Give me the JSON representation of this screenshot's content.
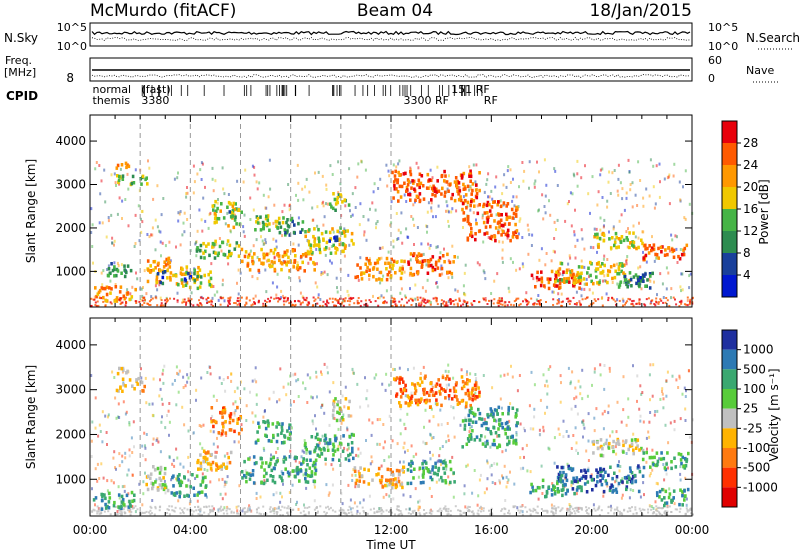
{
  "header": {
    "station": "McMurdo (fitACF)",
    "beam": "Beam 04",
    "date": "18/Jan/2015"
  },
  "aux_panels": {
    "nsky_label": "N.Sky",
    "nsky_ticks": [
      "10^5",
      "10^0"
    ],
    "nsearch_label": "N.Search",
    "nsearch_ticks": [
      "10^5",
      "10^0"
    ],
    "freq_label_1": "Freq.",
    "freq_label_2": "[MHz]",
    "freq_ticks": [
      "8"
    ],
    "nave_label": "Nave",
    "nave_ticks": [
      "60",
      "0"
    ],
    "cpid_label": "CPID",
    "cpid_entries": [
      {
        "text": "normal",
        "row": 0,
        "hour": 0.1
      },
      {
        "text": "themis",
        "row": 1,
        "hour": 0.1
      },
      {
        "text": "(fast)",
        "row": 0,
        "hour": 2.05
      },
      {
        "text": "3380",
        "row": 1,
        "hour": 2.05
      },
      {
        "text": "3300 RF",
        "row": 1,
        "hour": 12.5
      },
      {
        "text": "151 RF",
        "row": 0,
        "hour": 14.4
      },
      {
        "text": "RF",
        "row": 1,
        "hour": 15.7
      }
    ]
  },
  "colorbars": {
    "power": {
      "label": "Power [dB]",
      "ticks": [
        "28",
        "24",
        "20",
        "16",
        "12",
        "8",
        "4"
      ],
      "colors": [
        "#e8000b",
        "#ff5a00",
        "#ff9800",
        "#f0c800",
        "#46b446",
        "#2d8c50",
        "#19409b",
        "#0018d0"
      ]
    },
    "velocity": {
      "label": "Velocity [m s⁻¹]",
      "ticks": [
        "1000",
        "500",
        "100",
        "25",
        "-25",
        "-100",
        "-500",
        "-1000"
      ],
      "colors": [
        "#1f2f9f",
        "#2d7ab4",
        "#3aa870",
        "#58cc3a",
        "#c0c0c0",
        "#ffb300",
        "#ff7a10",
        "#ff3000",
        "#e00000"
      ]
    }
  },
  "chart_data": [
    {
      "type": "heatmap",
      "name": "power",
      "ylabel": "Slant Range [km]",
      "xlabel": "",
      "yticks": [
        1000,
        2000,
        3000,
        4000
      ],
      "ylim": [
        180,
        4600
      ],
      "xlim": [
        0,
        24
      ],
      "blobs": [
        {
          "h0": 0.1,
          "h1": 1.8,
          "r0": 300,
          "r1": 650,
          "level": 5
        },
        {
          "h0": 0.5,
          "h1": 1.6,
          "r0": 850,
          "r1": 1200,
          "level": 2
        },
        {
          "h0": 1.0,
          "h1": 2.3,
          "r0": 2950,
          "r1": 3200,
          "level": 3
        },
        {
          "h0": 1.0,
          "h1": 1.8,
          "r0": 3350,
          "r1": 3500,
          "level": 5
        },
        {
          "h0": 2.2,
          "h1": 3.2,
          "r0": 650,
          "r1": 1300,
          "level": 5
        },
        {
          "h0": 2.6,
          "h1": 3.0,
          "r0": 700,
          "r1": 1000,
          "level": 1
        },
        {
          "h0": 3.2,
          "h1": 4.8,
          "r0": 600,
          "r1": 1100,
          "level": 4
        },
        {
          "h0": 3.7,
          "h1": 4.5,
          "r0": 750,
          "r1": 950,
          "level": 1
        },
        {
          "h0": 4.2,
          "h1": 6.0,
          "r0": 1300,
          "r1": 1700,
          "level": 3
        },
        {
          "h0": 4.8,
          "h1": 6.0,
          "r0": 2000,
          "r1": 2600,
          "level": 4
        },
        {
          "h0": 5.4,
          "h1": 5.8,
          "r0": 2200,
          "r1": 2400,
          "level": 2
        },
        {
          "h0": 6.5,
          "h1": 8.0,
          "r0": 1900,
          "r1": 2300,
          "level": 3
        },
        {
          "h0": 7.5,
          "h1": 8.5,
          "r0": 1800,
          "r1": 2200,
          "level": 2
        },
        {
          "h0": 6.0,
          "h1": 9.0,
          "r0": 1000,
          "r1": 1500,
          "level": 5
        },
        {
          "h0": 8.5,
          "h1": 10.5,
          "r0": 1400,
          "r1": 2000,
          "level": 4
        },
        {
          "h0": 9.5,
          "h1": 10.3,
          "r0": 2400,
          "r1": 2800,
          "level": 3
        },
        {
          "h0": 9.5,
          "h1": 10.0,
          "r0": 1600,
          "r1": 1800,
          "level": 1
        },
        {
          "h0": 10.5,
          "h1": 12.5,
          "r0": 800,
          "r1": 1300,
          "level": 5
        },
        {
          "h0": 12.6,
          "h1": 14.5,
          "r0": 900,
          "r1": 1400,
          "level": 6
        },
        {
          "h0": 12.0,
          "h1": 15.5,
          "r0": 2600,
          "r1": 3300,
          "level": 6
        },
        {
          "h0": 14.8,
          "h1": 17.0,
          "r0": 1700,
          "r1": 2600,
          "level": 6
        },
        {
          "h0": 17.5,
          "h1": 19.5,
          "r0": 600,
          "r1": 1000,
          "level": 6
        },
        {
          "h0": 18.5,
          "h1": 21.5,
          "r0": 700,
          "r1": 1200,
          "level": 4
        },
        {
          "h0": 20.0,
          "h1": 22.0,
          "r0": 1500,
          "r1": 1900,
          "level": 4
        },
        {
          "h0": 21.0,
          "h1": 22.5,
          "r0": 600,
          "r1": 1000,
          "level": 2
        },
        {
          "h0": 21.5,
          "h1": 22.0,
          "r0": 650,
          "r1": 850,
          "level": 1
        },
        {
          "h0": 22.0,
          "h1": 23.8,
          "r0": 1200,
          "r1": 1600,
          "level": 6
        }
      ]
    },
    {
      "type": "heatmap",
      "name": "velocity",
      "ylabel": "Slant Range [km]",
      "xlabel": "Time UT",
      "xticks": [
        "00:00",
        "04:00",
        "08:00",
        "12:00",
        "16:00",
        "20:00",
        "00:00"
      ],
      "yticks": [
        1000,
        2000,
        3000,
        4000
      ],
      "ylim": [
        180,
        4600
      ],
      "xlim": [
        0,
        24
      ],
      "blobs": [
        {
          "h0": 0.1,
          "h1": 1.8,
          "r0": 300,
          "r1": 700,
          "level": 6
        },
        {
          "h0": 1.0,
          "h1": 2.2,
          "r0": 2950,
          "r1": 3250,
          "level": 3
        },
        {
          "h0": 1.0,
          "h1": 1.8,
          "r0": 3350,
          "r1": 3500,
          "level": 4
        },
        {
          "h0": 2.2,
          "h1": 3.2,
          "r0": 700,
          "r1": 1300,
          "level": 4
        },
        {
          "h0": 3.2,
          "h1": 4.8,
          "r0": 600,
          "r1": 1100,
          "level": 6
        },
        {
          "h0": 4.2,
          "h1": 5.6,
          "r0": 1200,
          "r1": 1700,
          "level": 3
        },
        {
          "h0": 4.8,
          "h1": 6.0,
          "r0": 2000,
          "r1": 2600,
          "level": 2
        },
        {
          "h0": 6.5,
          "h1": 8.0,
          "r0": 1800,
          "r1": 2300,
          "level": 6
        },
        {
          "h0": 6.0,
          "h1": 9.0,
          "r0": 900,
          "r1": 1500,
          "level": 6
        },
        {
          "h0": 8.5,
          "h1": 10.5,
          "r0": 1400,
          "r1": 2000,
          "level": 6
        },
        {
          "h0": 9.5,
          "h1": 10.3,
          "r0": 2300,
          "r1": 2800,
          "level": 4
        },
        {
          "h0": 10.5,
          "h1": 12.5,
          "r0": 800,
          "r1": 1300,
          "level": 3
        },
        {
          "h0": 12.6,
          "h1": 14.5,
          "r0": 900,
          "r1": 1400,
          "level": 6
        },
        {
          "h0": 12.0,
          "h1": 15.5,
          "r0": 2600,
          "r1": 3300,
          "level": 2
        },
        {
          "h0": 14.8,
          "h1": 17.0,
          "r0": 1700,
          "r1": 2600,
          "level": 6
        },
        {
          "h0": 17.5,
          "h1": 19.5,
          "r0": 600,
          "r1": 1000,
          "level": 6
        },
        {
          "h0": 18.5,
          "h1": 22.0,
          "r0": 700,
          "r1": 1300,
          "level": 7
        },
        {
          "h0": 20.0,
          "h1": 22.0,
          "r0": 1500,
          "r1": 1900,
          "level": 4
        },
        {
          "h0": 22.0,
          "h1": 23.8,
          "r0": 1200,
          "r1": 1600,
          "level": 6
        },
        {
          "h0": 22.5,
          "h1": 23.8,
          "r0": 400,
          "r1": 800,
          "level": 6
        }
      ]
    }
  ]
}
